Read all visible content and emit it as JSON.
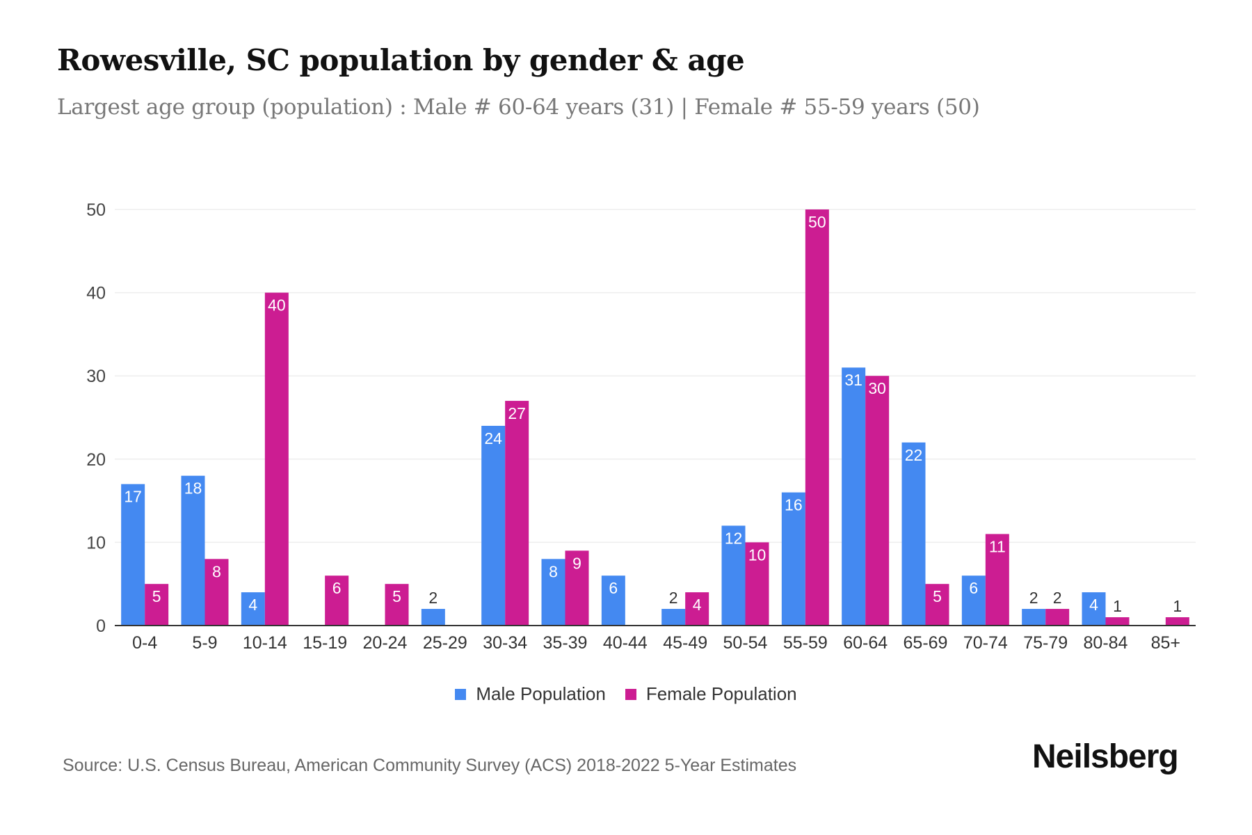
{
  "title": "Rowesville, SC population by gender & age",
  "subtitle": "Largest age group (population) : Male # 60-64 years (31) | Female # 55-59 years (50)",
  "source": "Source: U.S. Census Bureau, American Community Survey (ACS) 2018-2022 5-Year Estimates",
  "logo": "Neilsberg",
  "chart_data": {
    "type": "bar",
    "categories": [
      "0-4",
      "5-9",
      "10-14",
      "15-19",
      "20-24",
      "25-29",
      "30-34",
      "35-39",
      "40-44",
      "45-49",
      "50-54",
      "55-59",
      "60-64",
      "65-69",
      "70-74",
      "75-79",
      "80-84",
      "85+"
    ],
    "series": [
      {
        "name": "Male Population",
        "color": "#4489f1",
        "values": [
          17,
          18,
          4,
          0,
          0,
          2,
          24,
          8,
          6,
          2,
          12,
          16,
          31,
          22,
          6,
          2,
          4,
          0
        ]
      },
      {
        "name": "Female Population",
        "color": "#cc1d92",
        "values": [
          5,
          8,
          40,
          6,
          5,
          0,
          27,
          9,
          0,
          4,
          10,
          50,
          30,
          5,
          11,
          2,
          1,
          1
        ]
      }
    ],
    "yticks": [
      0,
      10,
      20,
      30,
      40,
      50
    ],
    "ylim": [
      0,
      50
    ],
    "grid": true,
    "legend": "bottom",
    "data_labels": true
  }
}
